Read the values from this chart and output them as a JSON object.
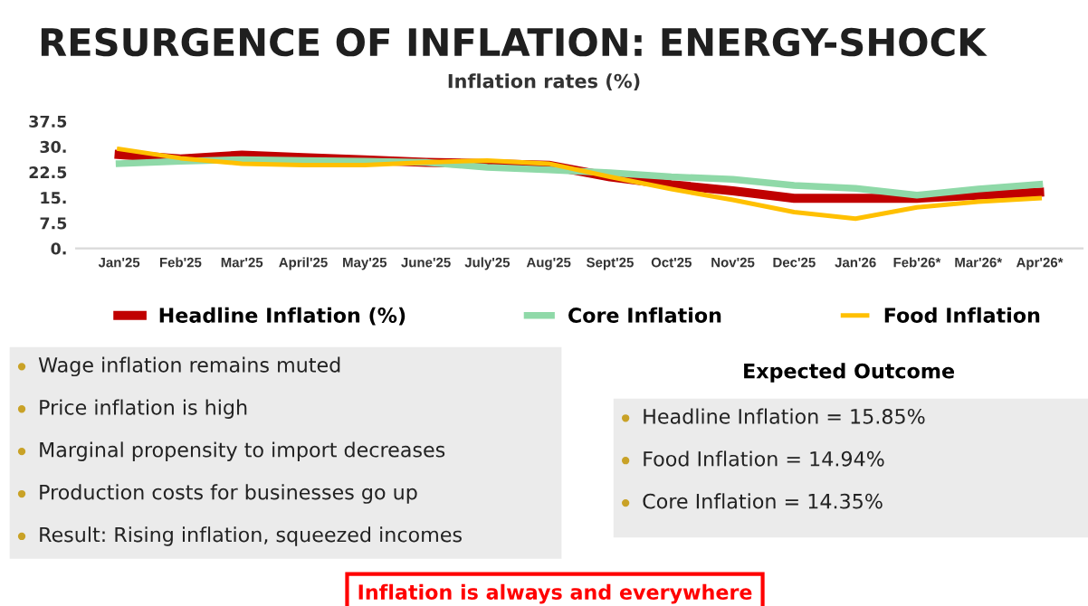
{
  "chart_data": {
    "type": "line",
    "title": "RESURGENCE OF INFLATION: ENERGY-SHOCK",
    "subtitle": "Inflation rates (%)",
    "categories": [
      "Jan'25",
      "Feb'25",
      "Mar'25",
      "April'25",
      "May'25",
      "June'25",
      "July'25",
      "Aug'25",
      "Sept'25",
      "Oct'25",
      "Nov'25",
      "Dec'25",
      "Jan'26",
      "Feb'26*",
      "Mar'26*",
      "Apr'26*"
    ],
    "series": [
      {
        "name": "Headline Inflation (%)",
        "color": "#c00000",
        "values": [
          27.7,
          26.4,
          27.5,
          26.8,
          26.1,
          25.4,
          25.0,
          24.5,
          21.1,
          18.8,
          17.0,
          14.8,
          14.8,
          14.8,
          15.7,
          16.6
        ]
      },
      {
        "name": "Core Inflation",
        "color": "#8fd9a8",
        "values": [
          25.0,
          25.7,
          26.2,
          25.9,
          25.7,
          25.4,
          23.9,
          23.2,
          22.3,
          21.1,
          20.4,
          18.6,
          17.7,
          15.7,
          17.5,
          18.9
        ]
      },
      {
        "name": "Food Inflation",
        "color": "#ffc000",
        "values": [
          29.3,
          26.6,
          25.0,
          24.6,
          24.6,
          25.4,
          25.9,
          25.0,
          21.1,
          17.5,
          14.3,
          10.7,
          8.8,
          12.1,
          13.8,
          14.8
        ]
      }
    ],
    "ylim": [
      0,
      37.5
    ],
    "yticks": [
      {
        "value": 0,
        "label": "0."
      },
      {
        "value": 7.5,
        "label": "7.5"
      },
      {
        "value": 15,
        "label": "15."
      },
      {
        "value": 22.5,
        "label": "22.5"
      },
      {
        "value": 30,
        "label": "30."
      },
      {
        "value": 37.5,
        "label": "37.5"
      }
    ],
    "grid": false,
    "legend": "bottom",
    "marker": "none",
    "line_style": "solid",
    "annotations": [
      "Wage inflation remains muted",
      "Price inflation is high",
      "Marginal propensity to import decreases",
      "Production costs for businesses go up",
      "Result: Rising inflation, squeezed incomes",
      "Expected Outcome",
      "Headline Inflation = 15.85%",
      "Food Inflation = 14.94%",
      "Core Inflation = 14.35%",
      "Inflation is always and everywhere"
    ]
  }
}
